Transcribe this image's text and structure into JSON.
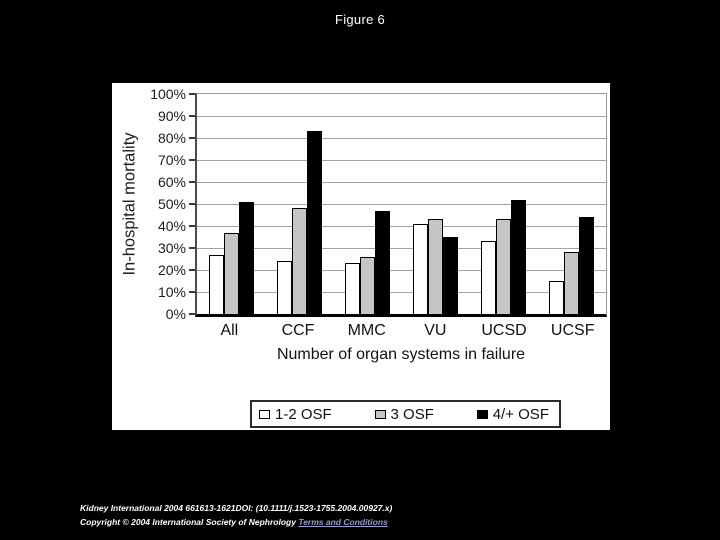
{
  "figure": {
    "title": "Figure 6"
  },
  "chart_data": {
    "type": "bar",
    "categories": [
      "All",
      "CCF",
      "MMC",
      "VU",
      "UCSD",
      "UCSF"
    ],
    "series": [
      {
        "name": "1-2 OSF",
        "color": "#ffffff",
        "values": [
          27,
          24,
          23,
          41,
          33,
          15
        ]
      },
      {
        "name": "3 OSF",
        "color": "#c5c5c5",
        "values": [
          37,
          48,
          26,
          43,
          43,
          28
        ]
      },
      {
        "name": "4/+ OSF",
        "color": "#000000",
        "values": [
          51,
          83,
          47,
          35,
          52,
          44
        ]
      }
    ],
    "title": "",
    "xlabel": "Number of organ systems in failure",
    "ylabel": "In-hospital mortality",
    "ylim": [
      0,
      100
    ],
    "ytick_step": 10,
    "ytick_suffix": "%",
    "grid": true,
    "legend_position": "bottom"
  },
  "footer": {
    "citation": "Kidney International 2004 661613-1621DOI: (10.1111/j.1523-1755.2004.00927.x)",
    "copyright_prefix": "Copyright © 2004 International Society of Nephrology ",
    "terms_link": "Terms and Conditions"
  },
  "colors": {
    "background": "#000000",
    "panel": "#ffffff",
    "grid": "#a2a2a2",
    "axis": "#000000",
    "title_text": "#ffffff",
    "footer_text": "#ffffff",
    "link": "#9a9ace"
  }
}
